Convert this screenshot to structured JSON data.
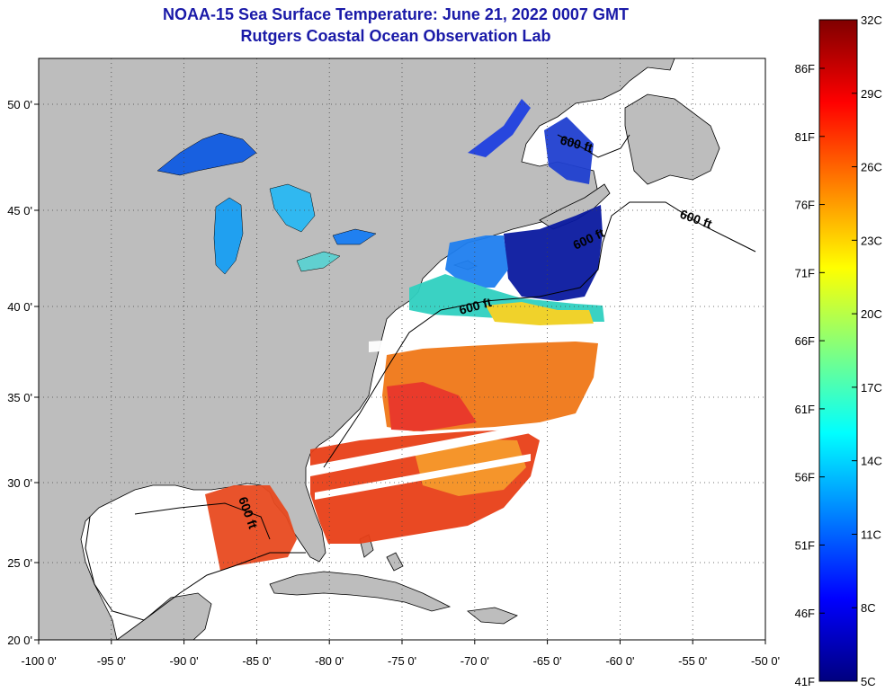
{
  "header": {
    "title": "NOAA-15 Sea Surface Temperature:  June 21, 2022 0007 GMT",
    "subtitle": "Rutgers Coastal Ocean Observation Lab"
  },
  "map": {
    "lat_ticks": [
      {
        "value": 50,
        "label": "50 0'"
      },
      {
        "value": 45,
        "label": "45 0'"
      },
      {
        "value": 40,
        "label": "40 0'"
      },
      {
        "value": 35,
        "label": "35 0'"
      },
      {
        "value": 30,
        "label": "30 0'"
      },
      {
        "value": 25,
        "label": "25 0'"
      },
      {
        "value": 20,
        "label": "20 0'"
      }
    ],
    "lon_ticks": [
      {
        "value": -100,
        "label": "-100 0'"
      },
      {
        "value": -95,
        "label": "-95 0'"
      },
      {
        "value": -90,
        "label": "-90 0'"
      },
      {
        "value": -85,
        "label": "-85 0'"
      },
      {
        "value": -80,
        "label": "-80 0'"
      },
      {
        "value": -75,
        "label": "-75 0'"
      },
      {
        "value": -70,
        "label": "-70 0'"
      },
      {
        "value": -65,
        "label": "-65 0'"
      },
      {
        "value": -60,
        "label": "-60 0'"
      },
      {
        "value": -55,
        "label": "-55 0'"
      },
      {
        "value": -50,
        "label": "-50 0'"
      }
    ],
    "contour_labels": [
      "600 ft",
      "600 ft",
      "600 ft",
      "600 ft",
      "600 ft"
    ],
    "colors": {
      "land": "#bdbdbd",
      "water_nodata": "#ffffff",
      "grid": "#555555",
      "coast": "#000000"
    }
  },
  "colorbar": {
    "celsius": [
      "32C",
      "29C",
      "26C",
      "23C",
      "20C",
      "17C",
      "14C",
      "11C",
      "8C",
      "5C"
    ],
    "fahrenheit": [
      "86F",
      "81F",
      "76F",
      "71F",
      "66F",
      "61F",
      "56F",
      "51F",
      "46F",
      "41F"
    ],
    "range_c": [
      5,
      32
    ],
    "colormap": [
      "#00007f",
      "#0000ff",
      "#0080ff",
      "#00ffff",
      "#80ff80",
      "#ffff00",
      "#ff8000",
      "#ff0000",
      "#7f0000"
    ]
  }
}
